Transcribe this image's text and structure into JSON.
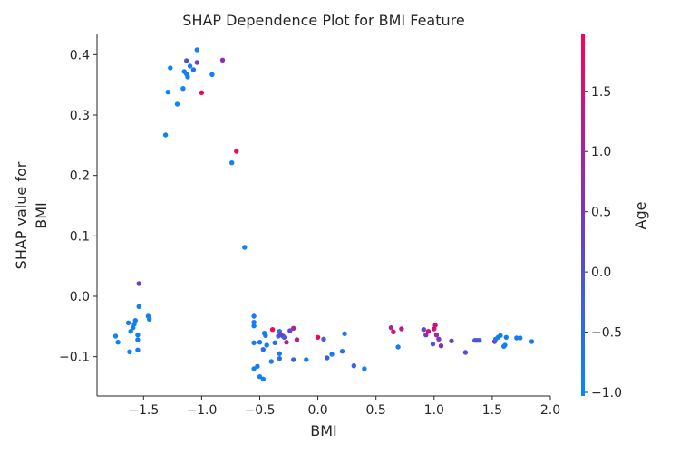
{
  "chart_data": {
    "type": "scatter",
    "title": "SHAP Dependence Plot for BMI Feature",
    "xlabel": "BMI",
    "ylabel_lines": [
      "SHAP value for",
      "BMI"
    ],
    "xlim": [
      -1.9,
      2.0
    ],
    "ylim": [
      -0.165,
      0.435
    ],
    "x_ticks": [
      -1.5,
      -1.0,
      -0.5,
      0.0,
      0.5,
      1.0,
      1.5,
      2.0
    ],
    "x_tick_labels": [
      "−1.5",
      "−1.0",
      "−0.5",
      "0.0",
      "0.5",
      "1.0",
      "1.5",
      "2.0"
    ],
    "y_ticks": [
      -0.1,
      0.0,
      0.1,
      0.2,
      0.3,
      0.4
    ],
    "y_tick_labels": [
      "−0.1",
      "0.0",
      "0.1",
      "0.2",
      "0.3",
      "0.4"
    ],
    "grid": false,
    "colorbar": {
      "label": "Age",
      "range": [
        -1.03,
        1.98
      ],
      "ticks": [
        -1.0,
        -0.5,
        0.0,
        0.5,
        1.0,
        1.5
      ],
      "tick_labels": [
        "−1.0",
        "−0.5",
        "0.0",
        "0.5",
        "1.0",
        "1.5"
      ],
      "color_low": "#008bfb",
      "color_mid": "#7a35c4",
      "color_high": "#ff0052"
    },
    "points": [
      {
        "x": -1.74,
        "y": -0.066,
        "c": -0.9
      },
      {
        "x": -1.72,
        "y": -0.076,
        "c": -0.85
      },
      {
        "x": -1.63,
        "y": -0.044,
        "c": -0.8
      },
      {
        "x": -1.62,
        "y": -0.092,
        "c": -0.75
      },
      {
        "x": -1.61,
        "y": -0.058,
        "c": -0.85
      },
      {
        "x": -1.59,
        "y": -0.052,
        "c": -0.8
      },
      {
        "x": -1.58,
        "y": -0.046,
        "c": -0.85
      },
      {
        "x": -1.57,
        "y": -0.04,
        "c": -0.8
      },
      {
        "x": -1.55,
        "y": -0.064,
        "c": -0.85
      },
      {
        "x": -1.55,
        "y": -0.072,
        "c": -0.8
      },
      {
        "x": -1.55,
        "y": -0.089,
        "c": -0.8
      },
      {
        "x": -1.54,
        "y": -0.017,
        "c": -0.85
      },
      {
        "x": -1.54,
        "y": 0.021,
        "c": 0.4
      },
      {
        "x": -1.46,
        "y": -0.033,
        "c": -0.85
      },
      {
        "x": -1.45,
        "y": -0.038,
        "c": -0.85
      },
      {
        "x": -1.31,
        "y": 0.267,
        "c": -0.95
      },
      {
        "x": -1.29,
        "y": 0.338,
        "c": -0.9
      },
      {
        "x": -1.27,
        "y": 0.378,
        "c": -0.9
      },
      {
        "x": -1.21,
        "y": 0.318,
        "c": -0.85
      },
      {
        "x": -1.16,
        "y": 0.344,
        "c": -0.85
      },
      {
        "x": -1.15,
        "y": 0.372,
        "c": -0.85
      },
      {
        "x": -1.13,
        "y": 0.39,
        "c": 0.1
      },
      {
        "x": -1.13,
        "y": 0.368,
        "c": -0.85
      },
      {
        "x": -1.12,
        "y": 0.363,
        "c": -0.85
      },
      {
        "x": -1.1,
        "y": 0.381,
        "c": -0.85
      },
      {
        "x": -1.07,
        "y": 0.375,
        "c": -0.5
      },
      {
        "x": -1.04,
        "y": 0.387,
        "c": 0.2
      },
      {
        "x": -1.04,
        "y": 0.408,
        "c": -0.85
      },
      {
        "x": -1.0,
        "y": 0.337,
        "c": 1.85
      },
      {
        "x": -0.91,
        "y": 0.367,
        "c": -0.85
      },
      {
        "x": -0.82,
        "y": 0.391,
        "c": 0.7
      },
      {
        "x": -0.74,
        "y": 0.221,
        "c": -0.9
      },
      {
        "x": -0.7,
        "y": 0.24,
        "c": 1.85
      },
      {
        "x": -0.63,
        "y": 0.081,
        "c": -0.85
      },
      {
        "x": -0.55,
        "y": -0.033,
        "c": -0.8
      },
      {
        "x": -0.55,
        "y": -0.043,
        "c": -0.8
      },
      {
        "x": -0.55,
        "y": -0.049,
        "c": -0.8
      },
      {
        "x": -0.55,
        "y": -0.077,
        "c": -0.8
      },
      {
        "x": -0.55,
        "y": -0.12,
        "c": -0.8
      },
      {
        "x": -0.52,
        "y": -0.116,
        "c": -0.8
      },
      {
        "x": -0.5,
        "y": -0.076,
        "c": -0.6
      },
      {
        "x": -0.5,
        "y": -0.133,
        "c": -0.8
      },
      {
        "x": -0.47,
        "y": -0.137,
        "c": -0.8
      },
      {
        "x": -0.47,
        "y": -0.088,
        "c": -0.5
      },
      {
        "x": -0.46,
        "y": -0.061,
        "c": -0.8
      },
      {
        "x": -0.45,
        "y": -0.065,
        "c": -0.7
      },
      {
        "x": -0.44,
        "y": -0.081,
        "c": -0.8
      },
      {
        "x": -0.4,
        "y": -0.108,
        "c": -0.8
      },
      {
        "x": -0.39,
        "y": -0.055,
        "c": 1.9
      },
      {
        "x": -0.37,
        "y": -0.077,
        "c": -0.6
      },
      {
        "x": -0.34,
        "y": -0.066,
        "c": -0.3
      },
      {
        "x": -0.33,
        "y": -0.058,
        "c": -0.7
      },
      {
        "x": -0.33,
        "y": -0.095,
        "c": -0.8
      },
      {
        "x": -0.33,
        "y": -0.103,
        "c": -0.5
      },
      {
        "x": -0.32,
        "y": -0.063,
        "c": 0.3
      },
      {
        "x": -0.3,
        "y": -0.066,
        "c": 0.5
      },
      {
        "x": -0.29,
        "y": -0.068,
        "c": -0.2
      },
      {
        "x": -0.27,
        "y": -0.076,
        "c": 1.2
      },
      {
        "x": -0.24,
        "y": -0.057,
        "c": 0.2
      },
      {
        "x": -0.21,
        "y": -0.053,
        "c": 1.0
      },
      {
        "x": -0.21,
        "y": -0.105,
        "c": -0.3
      },
      {
        "x": -0.18,
        "y": -0.072,
        "c": 1.2
      },
      {
        "x": -0.1,
        "y": -0.105,
        "c": -0.8
      },
      {
        "x": 0.0,
        "y": -0.068,
        "c": 1.8
      },
      {
        "x": 0.05,
        "y": -0.071,
        "c": -0.3
      },
      {
        "x": 0.08,
        "y": -0.102,
        "c": -0.2
      },
      {
        "x": 0.12,
        "y": -0.096,
        "c": -0.8
      },
      {
        "x": 0.21,
        "y": -0.091,
        "c": -0.6
      },
      {
        "x": 0.23,
        "y": -0.062,
        "c": -0.7
      },
      {
        "x": 0.31,
        "y": -0.115,
        "c": -0.3
      },
      {
        "x": 0.4,
        "y": -0.12,
        "c": -0.8
      },
      {
        "x": 0.63,
        "y": -0.052,
        "c": 0.9
      },
      {
        "x": 0.65,
        "y": -0.059,
        "c": 1.5
      },
      {
        "x": 0.69,
        "y": -0.084,
        "c": -0.8
      },
      {
        "x": 0.72,
        "y": -0.054,
        "c": 1.2
      },
      {
        "x": 0.91,
        "y": -0.055,
        "c": 0.3
      },
      {
        "x": 0.93,
        "y": -0.064,
        "c": 0.4
      },
      {
        "x": 0.95,
        "y": -0.058,
        "c": 1.6
      },
      {
        "x": 0.99,
        "y": -0.079,
        "c": -0.1
      },
      {
        "x": 1.0,
        "y": -0.054,
        "c": 1.4
      },
      {
        "x": 1.01,
        "y": -0.048,
        "c": 1.6
      },
      {
        "x": 1.02,
        "y": -0.064,
        "c": 0.9
      },
      {
        "x": 1.04,
        "y": -0.071,
        "c": 0.6
      },
      {
        "x": 1.06,
        "y": -0.082,
        "c": 0.7
      },
      {
        "x": 1.15,
        "y": -0.074,
        "c": 0.3
      },
      {
        "x": 1.27,
        "y": -0.093,
        "c": 0.1
      },
      {
        "x": 1.35,
        "y": -0.073,
        "c": -0.4
      },
      {
        "x": 1.37,
        "y": -0.073,
        "c": 0.2
      },
      {
        "x": 1.39,
        "y": -0.073,
        "c": -0.3
      },
      {
        "x": 1.52,
        "y": -0.075,
        "c": 0.9
      },
      {
        "x": 1.53,
        "y": -0.071,
        "c": -0.7
      },
      {
        "x": 1.55,
        "y": -0.068,
        "c": -0.8
      },
      {
        "x": 1.57,
        "y": -0.065,
        "c": -0.8
      },
      {
        "x": 1.6,
        "y": -0.083,
        "c": -0.8
      },
      {
        "x": 1.61,
        "y": -0.081,
        "c": -0.9
      },
      {
        "x": 1.62,
        "y": -0.068,
        "c": -0.8
      },
      {
        "x": 1.71,
        "y": -0.069,
        "c": -0.8
      },
      {
        "x": 1.74,
        "y": -0.069,
        "c": -0.8
      },
      {
        "x": 1.84,
        "y": -0.075,
        "c": -0.8
      }
    ]
  }
}
